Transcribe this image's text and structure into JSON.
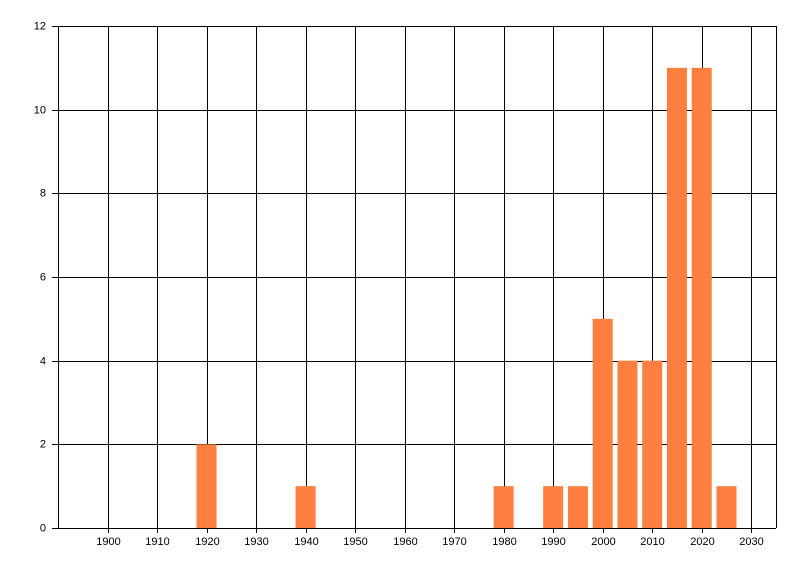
{
  "chart_data": {
    "type": "bar",
    "x": [
      1920,
      1940,
      1980,
      1990,
      1995,
      2000,
      2005,
      2010,
      2015,
      2020,
      2025
    ],
    "values": [
      2,
      1,
      1,
      1,
      1,
      5,
      4,
      4,
      11,
      11,
      1
    ],
    "color": "#ff7f40",
    "xlim": [
      1890,
      2035
    ],
    "xticks": [
      1900,
      1910,
      1920,
      1930,
      1940,
      1950,
      1960,
      1970,
      1980,
      1990,
      2000,
      2010,
      2020,
      2030
    ],
    "ylim": [
      0,
      12
    ],
    "yticks": [
      0,
      2,
      4,
      6,
      8,
      10,
      12
    ],
    "grid": true
  }
}
